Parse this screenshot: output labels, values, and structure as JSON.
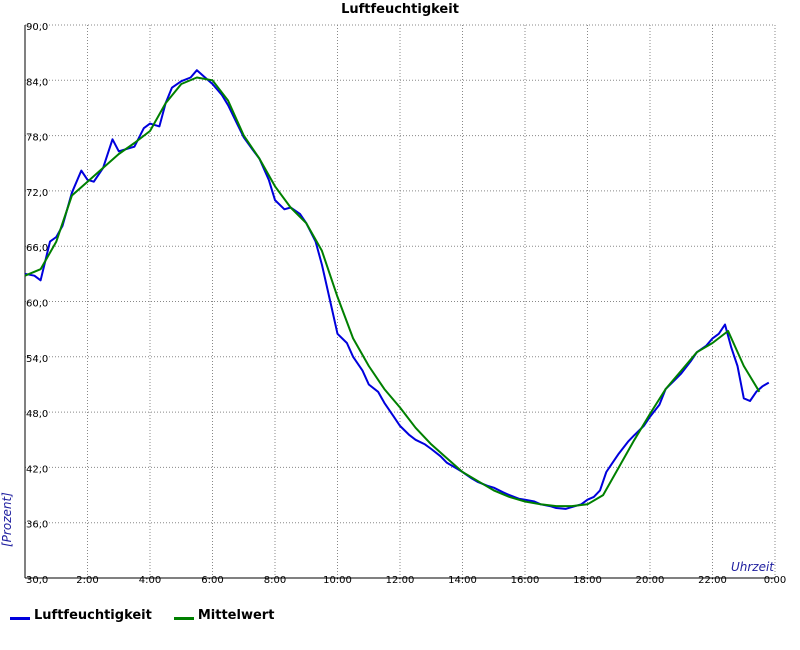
{
  "chart_data": {
    "type": "line",
    "title": "Luftfeuchtigkeit",
    "xlabel": "Uhrzeit",
    "ylabel": "[Prozent]",
    "xlim": [
      0,
      24
    ],
    "ylim": [
      30,
      90
    ],
    "x_ticks": [
      "2:00",
      "4:00",
      "6:00",
      "8:00",
      "10:00",
      "12:00",
      "14:00",
      "16:00",
      "18:00",
      "20:00",
      "22:00",
      "0:00"
    ],
    "y_ticks": [
      "30,0",
      "36,0",
      "42,0",
      "48,0",
      "54,0",
      "60,0",
      "66,0",
      "72,0",
      "78,0",
      "84,0",
      "90,0"
    ],
    "grid": true,
    "legend_position": "bottom-left",
    "series": [
      {
        "name": "Luftfeuchtigkeit",
        "color": "#0000dd",
        "x": [
          0,
          0.3,
          0.5,
          0.8,
          1.0,
          1.2,
          1.5,
          1.8,
          2.0,
          2.2,
          2.5,
          2.8,
          3.0,
          3.2,
          3.5,
          3.8,
          4.0,
          4.3,
          4.5,
          4.7,
          5.0,
          5.3,
          5.5,
          5.7,
          6.0,
          6.3,
          6.5,
          6.8,
          7.0,
          7.3,
          7.5,
          7.8,
          8.0,
          8.3,
          8.5,
          8.8,
          9.0,
          9.3,
          9.5,
          9.8,
          10.0,
          10.3,
          10.5,
          10.8,
          11.0,
          11.3,
          11.5,
          11.8,
          12.0,
          12.3,
          12.5,
          12.8,
          13.0,
          13.3,
          13.5,
          13.8,
          14.0,
          14.3,
          14.5,
          14.8,
          15.0,
          15.3,
          15.5,
          15.8,
          16.0,
          16.3,
          16.5,
          16.8,
          17.0,
          17.3,
          17.5,
          17.8,
          18.0,
          18.2,
          18.4,
          18.6,
          18.8,
          19.0,
          19.3,
          19.5,
          19.8,
          20.0,
          20.3,
          20.5,
          20.8,
          21.0,
          21.3,
          21.5,
          21.8,
          22.0,
          22.2,
          22.4,
          22.6,
          22.8,
          23.0,
          23.2,
          23.4,
          23.6,
          23.8
        ],
        "values": [
          63.0,
          62.8,
          62.3,
          66.5,
          67.0,
          68.2,
          71.8,
          74.2,
          73.2,
          73.0,
          74.5,
          77.6,
          76.3,
          76.5,
          76.8,
          78.8,
          79.3,
          79.0,
          81.5,
          83.2,
          83.9,
          84.3,
          85.1,
          84.5,
          83.6,
          82.4,
          81.3,
          79.2,
          77.8,
          76.4,
          75.5,
          73.2,
          71.0,
          70.0,
          70.2,
          69.5,
          68.5,
          66.5,
          64.0,
          59.5,
          56.5,
          55.5,
          54.0,
          52.5,
          51.0,
          50.2,
          49.0,
          47.5,
          46.5,
          45.5,
          45.0,
          44.5,
          44.0,
          43.2,
          42.5,
          41.9,
          41.5,
          40.8,
          40.4,
          40.0,
          39.8,
          39.3,
          39.0,
          38.6,
          38.5,
          38.3,
          38.0,
          37.8,
          37.6,
          37.5,
          37.7,
          38.0,
          38.5,
          38.8,
          39.5,
          41.5,
          42.5,
          43.5,
          44.8,
          45.5,
          46.5,
          47.5,
          48.8,
          50.5,
          51.5,
          52.2,
          53.5,
          54.5,
          55.2,
          56.0,
          56.5,
          57.5,
          55.0,
          53.0,
          49.5,
          49.2,
          50.2,
          50.8,
          51.2
        ]
      },
      {
        "name": "Mittelwert",
        "color": "#008000",
        "x": [
          0,
          0.5,
          1.0,
          1.5,
          2.0,
          2.5,
          3.0,
          3.5,
          4.0,
          4.5,
          5.0,
          5.5,
          6.0,
          6.5,
          7.0,
          7.5,
          8.0,
          8.5,
          9.0,
          9.5,
          10.0,
          10.5,
          11.0,
          11.5,
          12.0,
          12.5,
          13.0,
          13.5,
          14.0,
          14.5,
          15.0,
          15.5,
          16.0,
          16.5,
          17.0,
          17.5,
          18.0,
          18.5,
          19.0,
          19.5,
          20.0,
          20.5,
          21.0,
          21.5,
          22.0,
          22.5,
          23.0,
          23.5
        ],
        "values": [
          62.8,
          63.5,
          66.5,
          71.5,
          73.0,
          74.5,
          76.0,
          77.2,
          78.5,
          81.5,
          83.6,
          84.3,
          84.0,
          81.8,
          78.0,
          75.5,
          72.5,
          70.2,
          68.5,
          65.5,
          60.5,
          56.0,
          53.0,
          50.5,
          48.5,
          46.3,
          44.5,
          43.0,
          41.5,
          40.5,
          39.5,
          38.8,
          38.3,
          38.0,
          37.8,
          37.8,
          38.0,
          39.0,
          42.0,
          45.0,
          47.8,
          50.5,
          52.5,
          54.5,
          55.5,
          56.8,
          53.0,
          50.2
        ]
      }
    ]
  }
}
